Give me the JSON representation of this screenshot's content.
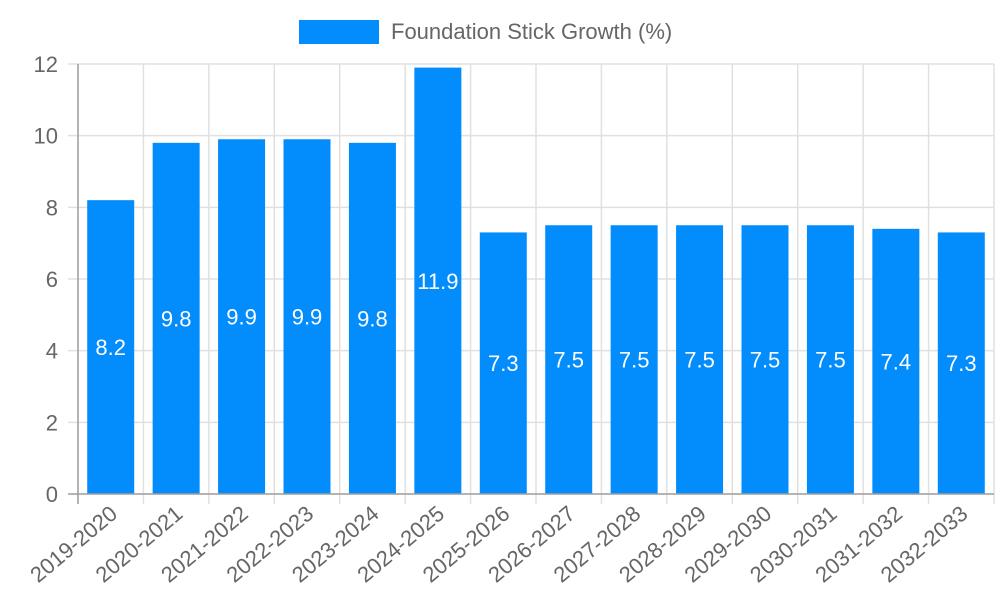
{
  "chart_data": {
    "type": "bar",
    "title": "",
    "legend": [
      {
        "label": "Foundation Stick Growth (%)",
        "color": "#038cfc"
      }
    ],
    "legend_position": "top",
    "categories": [
      "2019-2020",
      "2020-2021",
      "2021-2022",
      "2022-2023",
      "2023-2024",
      "2024-2025",
      "2025-2026",
      "2026-2027",
      "2027-2028",
      "2028-2029",
      "2029-2030",
      "2030-2031",
      "2031-2032",
      "2032-2033"
    ],
    "series": [
      {
        "name": "Foundation Stick Growth (%)",
        "values": [
          8.2,
          9.8,
          9.9,
          9.9,
          9.8,
          11.9,
          7.3,
          7.5,
          7.5,
          7.5,
          7.5,
          7.5,
          7.4,
          7.3
        ],
        "color": "#038cfc"
      }
    ],
    "data_labels": [
      "8.2",
      "9.8",
      "9.9",
      "9.9",
      "9.8",
      "11.9",
      "7.3",
      "7.5",
      "7.5",
      "7.5",
      "7.5",
      "7.5",
      "7.4",
      "7.3"
    ],
    "xlabel": "",
    "ylabel": "",
    "ylim": [
      0,
      12
    ],
    "yticks": [
      "0",
      "2",
      "4",
      "6",
      "8",
      "10",
      "12"
    ],
    "grid": true
  }
}
